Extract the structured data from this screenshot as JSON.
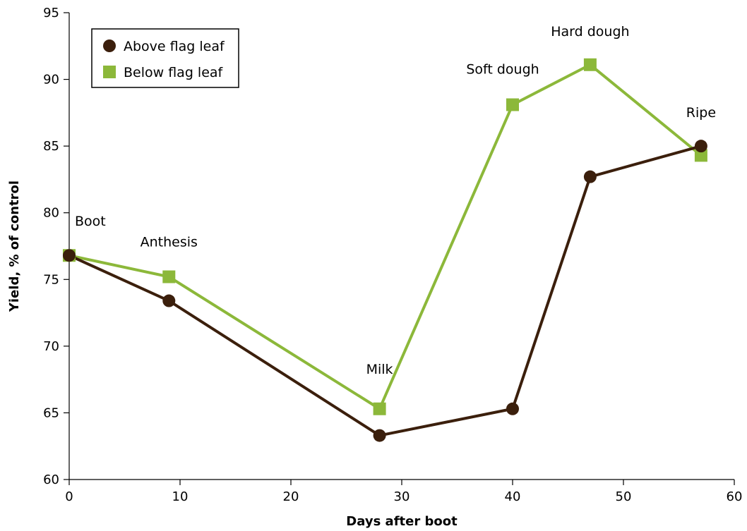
{
  "chart_data": {
    "type": "line",
    "xlabel": "Days after boot",
    "ylabel": "Yield, % of control",
    "xlim": [
      0,
      60
    ],
    "ylim": [
      60,
      95
    ],
    "xticks": [
      0,
      10,
      20,
      30,
      40,
      50,
      60
    ],
    "yticks": [
      60,
      65,
      70,
      75,
      80,
      85,
      90,
      95
    ],
    "grid": false,
    "legend_position": "top-left",
    "series": [
      {
        "name": "Above flag leaf",
        "marker": "circle",
        "color": "#3b1f0c",
        "x": [
          0,
          9,
          28,
          40,
          47,
          57
        ],
        "y": [
          76.8,
          73.4,
          63.3,
          65.3,
          82.7,
          85.0
        ]
      },
      {
        "name": "Below flag leaf",
        "marker": "square",
        "color": "#8cb83a",
        "x": [
          0,
          9,
          28,
          40,
          47,
          57
        ],
        "y": [
          76.8,
          75.2,
          65.3,
          88.1,
          91.1,
          84.3
        ]
      }
    ],
    "annotations": [
      {
        "text": "Boot",
        "x": 0,
        "y": 76.8
      },
      {
        "text": "Anthesis",
        "x": 9,
        "y": 75.2
      },
      {
        "text": "Milk",
        "x": 28,
        "y": 65.3
      },
      {
        "text": "Soft dough",
        "x": 40,
        "y": 88.1
      },
      {
        "text": "Hard dough",
        "x": 47,
        "y": 91.1
      },
      {
        "text": "Ripe",
        "x": 57,
        "y": 85.0
      }
    ]
  }
}
